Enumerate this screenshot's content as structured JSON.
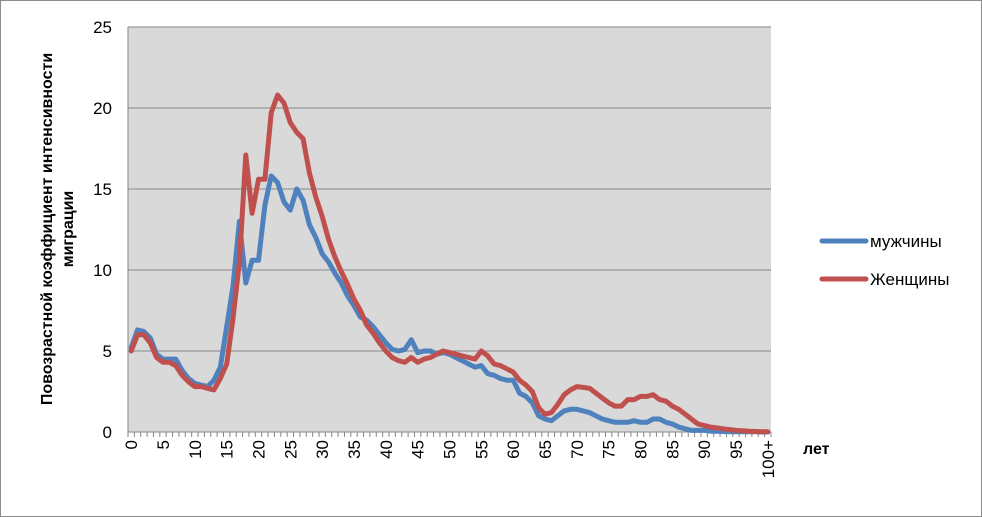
{
  "chart_data": {
    "type": "line",
    "title": "",
    "xlabel": "лет",
    "ylabel": "Повозрастной коэффициент интенсивности миграции",
    "ylim": [
      0,
      25
    ],
    "yticks": [
      0,
      5,
      10,
      15,
      20,
      25
    ],
    "xlim": [
      0,
      100
    ],
    "x_tick_labels": [
      "0",
      "5",
      "10",
      "15",
      "20",
      "25",
      "30",
      "35",
      "40",
      "45",
      "50",
      "55",
      "60",
      "65",
      "70",
      "75",
      "80",
      "85",
      "90",
      "95",
      "100+"
    ],
    "grid": true,
    "legend_position": "right",
    "plot_background": "#d9d9d9",
    "x": [
      0,
      1,
      2,
      3,
      4,
      5,
      6,
      7,
      8,
      9,
      10,
      11,
      12,
      13,
      14,
      15,
      16,
      17,
      18,
      19,
      20,
      21,
      22,
      23,
      24,
      25,
      26,
      27,
      28,
      29,
      30,
      31,
      32,
      33,
      34,
      35,
      36,
      37,
      38,
      39,
      40,
      41,
      42,
      43,
      44,
      45,
      46,
      47,
      48,
      49,
      50,
      51,
      52,
      53,
      54,
      55,
      56,
      57,
      58,
      59,
      60,
      61,
      62,
      63,
      64,
      65,
      66,
      67,
      68,
      69,
      70,
      71,
      72,
      73,
      74,
      75,
      76,
      77,
      78,
      79,
      80,
      81,
      82,
      83,
      84,
      85,
      86,
      87,
      88,
      89,
      90,
      91,
      92,
      93,
      94,
      95,
      96,
      97,
      98,
      99,
      100
    ],
    "series": [
      {
        "name": "мужчины",
        "color": "#4f81bd",
        "values": [
          5.2,
          6.3,
          6.2,
          5.8,
          4.8,
          4.5,
          4.5,
          4.5,
          3.8,
          3.3,
          3.0,
          2.9,
          2.8,
          3.2,
          4.0,
          6.5,
          9.0,
          13.0,
          9.2,
          10.6,
          10.6,
          14.0,
          15.8,
          15.4,
          14.2,
          13.7,
          15.0,
          14.3,
          12.8,
          12.0,
          11.0,
          10.5,
          9.8,
          9.2,
          8.4,
          7.8,
          7.1,
          6.9,
          6.5,
          6.0,
          5.5,
          5.1,
          5.0,
          5.1,
          5.7,
          4.9,
          5.0,
          5.0,
          4.8,
          4.9,
          4.8,
          4.6,
          4.4,
          4.2,
          4.0,
          4.1,
          3.6,
          3.5,
          3.3,
          3.2,
          3.2,
          2.4,
          2.2,
          1.8,
          1.0,
          0.8,
          0.7,
          1.0,
          1.3,
          1.4,
          1.4,
          1.3,
          1.2,
          1.0,
          0.8,
          0.7,
          0.6,
          0.6,
          0.6,
          0.7,
          0.6,
          0.6,
          0.8,
          0.8,
          0.6,
          0.5,
          0.3,
          0.2,
          0.1,
          0.1,
          0.1,
          0.05,
          0.05,
          0.03,
          0.02,
          0.02,
          0.01,
          0.01,
          0.01,
          0.0,
          0.0
        ]
      },
      {
        "name": "Женщины",
        "color": "#c0504d",
        "values": [
          5.0,
          6.0,
          6.0,
          5.5,
          4.6,
          4.3,
          4.3,
          4.1,
          3.5,
          3.1,
          2.8,
          2.8,
          2.7,
          2.6,
          3.3,
          4.2,
          7.0,
          10.5,
          17.1,
          13.5,
          15.6,
          15.6,
          19.7,
          20.8,
          20.3,
          19.1,
          18.5,
          18.1,
          16.0,
          14.5,
          13.3,
          11.9,
          10.8,
          9.9,
          9.1,
          8.2,
          7.5,
          6.6,
          6.1,
          5.5,
          5.0,
          4.6,
          4.4,
          4.3,
          4.6,
          4.3,
          4.5,
          4.6,
          4.8,
          5.0,
          4.9,
          4.8,
          4.7,
          4.6,
          4.5,
          5.0,
          4.7,
          4.2,
          4.1,
          3.9,
          3.7,
          3.2,
          2.9,
          2.5,
          1.5,
          1.1,
          1.2,
          1.7,
          2.3,
          2.6,
          2.8,
          2.75,
          2.7,
          2.4,
          2.1,
          1.8,
          1.6,
          1.6,
          2.0,
          2.0,
          2.2,
          2.2,
          2.3,
          2.0,
          1.9,
          1.6,
          1.4,
          1.1,
          0.8,
          0.5,
          0.4,
          0.3,
          0.25,
          0.2,
          0.15,
          0.1,
          0.08,
          0.05,
          0.03,
          0.02,
          0.01
        ]
      }
    ]
  }
}
